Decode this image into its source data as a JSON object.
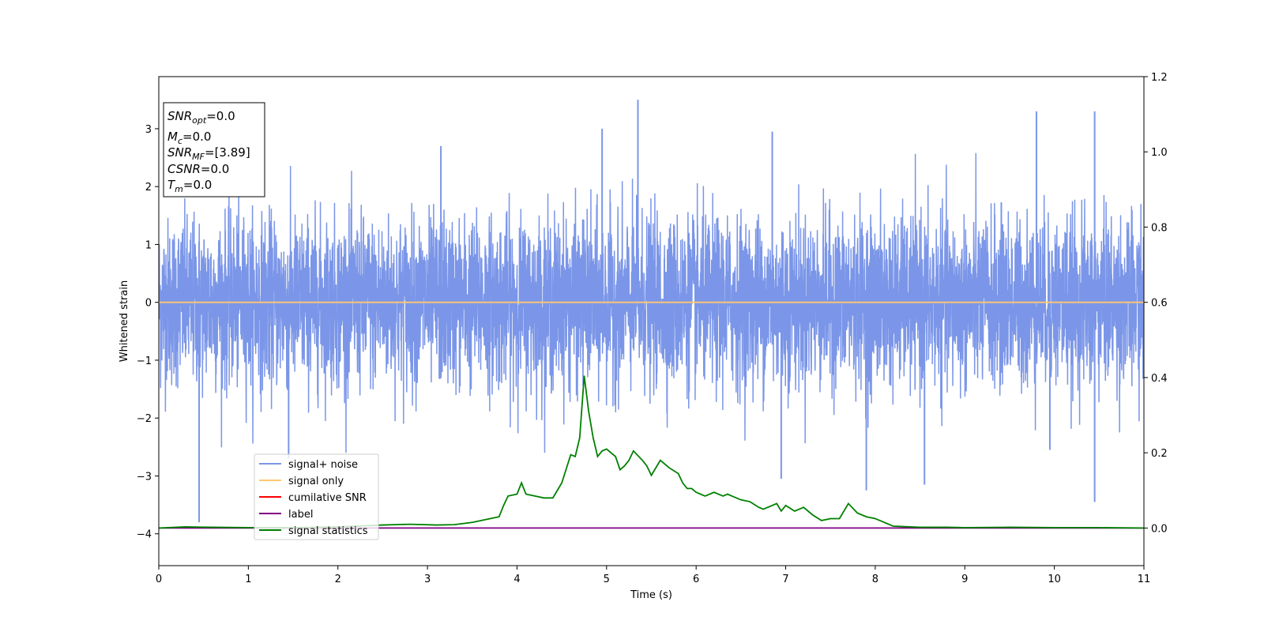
{
  "chart_data": {
    "type": "line",
    "title": "",
    "xlabel": "Time (s)",
    "ylabel": "Whitened strain",
    "y2label": "",
    "xlim": [
      0,
      11
    ],
    "ylim": [
      -4.55,
      3.9
    ],
    "y2lim": [
      -0.1,
      1.2
    ],
    "xticks": [
      "0",
      "1",
      "2",
      "3",
      "4",
      "5",
      "6",
      "7",
      "8",
      "9",
      "10",
      "11"
    ],
    "yticks": [
      "3",
      "2",
      "1",
      "0",
      "−1",
      "−2",
      "−3",
      "−4"
    ],
    "yticks_values": [
      3,
      2,
      1,
      0,
      -1,
      -2,
      -3,
      -4
    ],
    "y2ticks": [
      "1.2",
      "1.0",
      "0.8",
      "0.6",
      "0.4",
      "0.2",
      "0.0"
    ],
    "y2ticks_values": [
      1.2,
      1.0,
      0.8,
      0.6,
      0.4,
      0.2,
      0.0
    ],
    "grid": false,
    "legend_position": "lower-left",
    "series": [
      {
        "name": "signal+ noise",
        "axis": "left",
        "color": "#7b96e8",
        "description": "dense whitened noise; roughly ±1.5 with spikes up to ~3.5 and down to ~-3.8",
        "spikes": [
          {
            "x": 0.45,
            "y": -3.8
          },
          {
            "x": 5.35,
            "y": 3.5
          },
          {
            "x": 9.8,
            "y": 3.3
          },
          {
            "x": 10.45,
            "y": 3.3
          },
          {
            "x": 10.45,
            "y": -3.45
          },
          {
            "x": 7.9,
            "y": -3.25
          },
          {
            "x": 8.55,
            "y": -3.15
          },
          {
            "x": 6.95,
            "y": -3.05
          },
          {
            "x": 4.95,
            "y": 3.0
          },
          {
            "x": 6.85,
            "y": 2.95
          },
          {
            "x": 3.15,
            "y": 2.7
          },
          {
            "x": 1.45,
            "y": -2.7
          },
          {
            "x": 9.95,
            "y": -2.55
          }
        ]
      },
      {
        "name": "signal only",
        "axis": "left",
        "color": "#ffc870",
        "x": [
          0,
          11
        ],
        "y": [
          0,
          0
        ]
      },
      {
        "name": "cumilative SNR",
        "axis": "right",
        "color": "#ff0000",
        "x": [],
        "y": []
      },
      {
        "name": "label",
        "axis": "right",
        "color": "#800080",
        "x": [
          0,
          11
        ],
        "y": [
          0.0,
          0.0
        ]
      },
      {
        "name": "signal statistics",
        "axis": "right",
        "color": "#008000",
        "x": [
          0,
          0.3,
          0.6,
          1.0,
          1.5,
          2.0,
          2.5,
          2.8,
          3.1,
          3.3,
          3.5,
          3.7,
          3.8,
          3.85,
          3.9,
          4.0,
          4.05,
          4.1,
          4.2,
          4.3,
          4.4,
          4.5,
          4.6,
          4.65,
          4.7,
          4.75,
          4.8,
          4.85,
          4.9,
          4.95,
          5.0,
          5.1,
          5.15,
          5.2,
          5.25,
          5.3,
          5.4,
          5.45,
          5.5,
          5.6,
          5.7,
          5.8,
          5.85,
          5.9,
          5.95,
          6.0,
          6.1,
          6.2,
          6.3,
          6.35,
          6.4,
          6.5,
          6.6,
          6.7,
          6.75,
          6.8,
          6.9,
          6.95,
          7.0,
          7.1,
          7.2,
          7.3,
          7.4,
          7.5,
          7.6,
          7.7,
          7.8,
          7.9,
          8.0,
          8.2,
          8.5,
          8.8,
          9.0,
          9.5,
          10.0,
          10.5,
          11.0
        ],
        "y": [
          0.0,
          0.003,
          0.002,
          0.001,
          0.001,
          0.003,
          0.008,
          0.01,
          0.008,
          0.009,
          0.015,
          0.025,
          0.03,
          0.06,
          0.085,
          0.09,
          0.12,
          0.09,
          0.085,
          0.08,
          0.08,
          0.12,
          0.195,
          0.19,
          0.24,
          0.405,
          0.31,
          0.24,
          0.19,
          0.205,
          0.21,
          0.19,
          0.155,
          0.165,
          0.18,
          0.205,
          0.18,
          0.165,
          0.14,
          0.18,
          0.16,
          0.145,
          0.12,
          0.105,
          0.105,
          0.095,
          0.085,
          0.095,
          0.085,
          0.09,
          0.085,
          0.075,
          0.07,
          0.055,
          0.05,
          0.055,
          0.065,
          0.045,
          0.06,
          0.045,
          0.055,
          0.035,
          0.02,
          0.025,
          0.025,
          0.065,
          0.04,
          0.03,
          0.025,
          0.005,
          0.002,
          0.002,
          0.001,
          0.002,
          0.001,
          0.001,
          0.0
        ]
      }
    ],
    "stats_box": {
      "lines": [
        {
          "main": "SNR",
          "sub": "opt",
          "value": "=0.0"
        },
        {
          "main": "M",
          "sub": "c",
          "value": "=0.0"
        },
        {
          "main": "SNR",
          "sub": "MF",
          "value": "=[3.89]"
        },
        {
          "main": "CSNR",
          "sub": "",
          "value": "=0.0"
        },
        {
          "main": "T",
          "sub": "m",
          "value": "=0.0"
        }
      ]
    }
  }
}
